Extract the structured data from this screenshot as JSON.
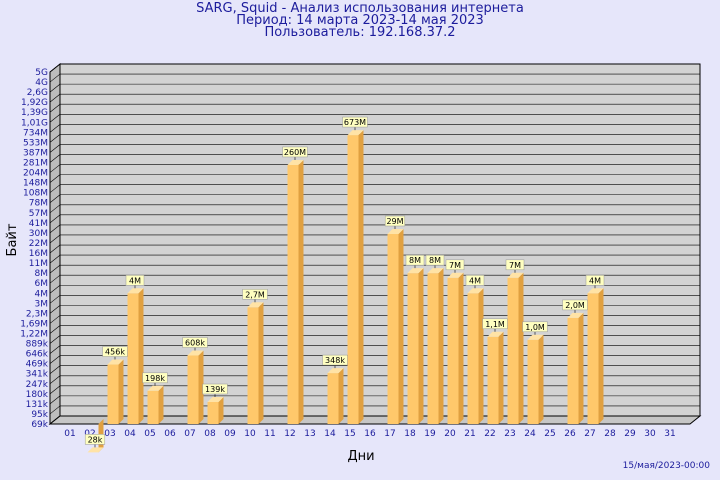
{
  "title_lines": [
    "SARG, Squid - Анализ использования интернета",
    "Период: 14 марта 2023-14 мая 2023",
    "Пользователь: 192.168.37.2"
  ],
  "timestamp": "15/мая/2023-00:00",
  "chart_data": {
    "type": "bar",
    "xlabel": "Дни",
    "ylabel": "Байт",
    "categories": [
      "01",
      "02",
      "03",
      "04",
      "05",
      "06",
      "07",
      "08",
      "09",
      "10",
      "11",
      "12",
      "13",
      "14",
      "15",
      "16",
      "17",
      "18",
      "19",
      "20",
      "21",
      "22",
      "23",
      "24",
      "25",
      "26",
      "27",
      "28",
      "29",
      "30",
      "31"
    ],
    "y_ticks": [
      "5G",
      "4G",
      "2,6G",
      "1,92G",
      "1,39G",
      "1,01G",
      "734M",
      "533M",
      "387M",
      "281M",
      "204M",
      "148M",
      "108M",
      "78M",
      "57M",
      "41M",
      "30M",
      "22M",
      "16M",
      "11M",
      "8M",
      "6M",
      "4M",
      "3M",
      "2,3M",
      "1,69M",
      "1,22M",
      "889k",
      "646k",
      "469k",
      "341k",
      "247k",
      "180k",
      "131k",
      "95k",
      "69k"
    ],
    "y_scale": "log",
    "values": [
      null,
      28000,
      456000,
      4000000,
      198000,
      null,
      608000,
      139000,
      null,
      2700000,
      null,
      260000000,
      null,
      348000,
      673000000,
      null,
      29000000,
      8000000,
      8000000,
      7000000,
      4000000,
      1100000,
      7000000,
      1000000,
      null,
      2000000,
      4000000,
      null,
      null,
      null,
      null
    ],
    "labels": [
      "",
      "28k",
      "456k",
      "4M",
      "198k",
      "",
      "608k",
      "139k",
      "",
      "2,7M",
      "",
      "260M",
      "",
      "348k",
      "673M",
      "",
      "29M",
      "8M",
      "8M",
      "7M",
      "4M",
      "1,1M",
      "7M",
      "1,0M",
      "",
      "2,0M",
      "4M",
      "",
      "",
      "",
      ""
    ],
    "colors": {
      "bar_front": "#ffc86b",
      "bar_side": "#e0a040",
      "bar_top": "#ffe3a6",
      "plot_bg": "#d3d3d3",
      "label_bg": "#ffffc0",
      "axis_text": "#1c1c9c"
    }
  }
}
